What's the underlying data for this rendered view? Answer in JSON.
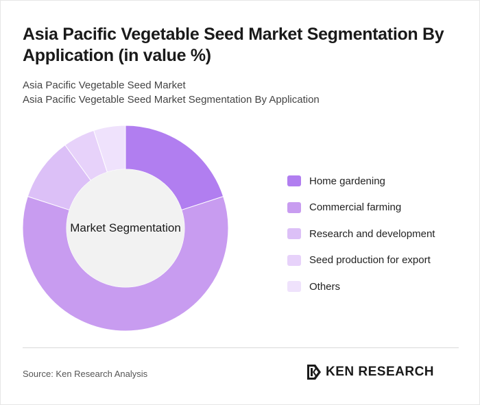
{
  "header": {
    "title": "Asia Pacific Vegetable Seed Market Segmentation By Application (in value %)",
    "subtitle_line1": "Asia Pacific Vegetable Seed Market",
    "subtitle_line2": "Asia Pacific Vegetable Seed Market Segmentation By Application"
  },
  "chart_data": {
    "type": "pie",
    "center_label": "Market Segmentation",
    "categories": [
      "Home gardening",
      "Commercial farming",
      "Research and development",
      "Seed production for export",
      "Others"
    ],
    "values": [
      20,
      60,
      10,
      5,
      5
    ],
    "colors": [
      "#b17ef0",
      "#c89cf0",
      "#dcc0f7",
      "#e7d2fa",
      "#efe2fc"
    ]
  },
  "legend": {
    "items": [
      {
        "label": "Home gardening",
        "color": "#b17ef0"
      },
      {
        "label": "Commercial farming",
        "color": "#c89cf0"
      },
      {
        "label": "Research and development",
        "color": "#dcc0f7"
      },
      {
        "label": "Seed production for export",
        "color": "#e7d2fa"
      },
      {
        "label": "Others",
        "color": "#efe2fc"
      }
    ]
  },
  "footer": {
    "source": "Source: Ken Research Analysis",
    "brand": "KEN RESEARCH"
  }
}
